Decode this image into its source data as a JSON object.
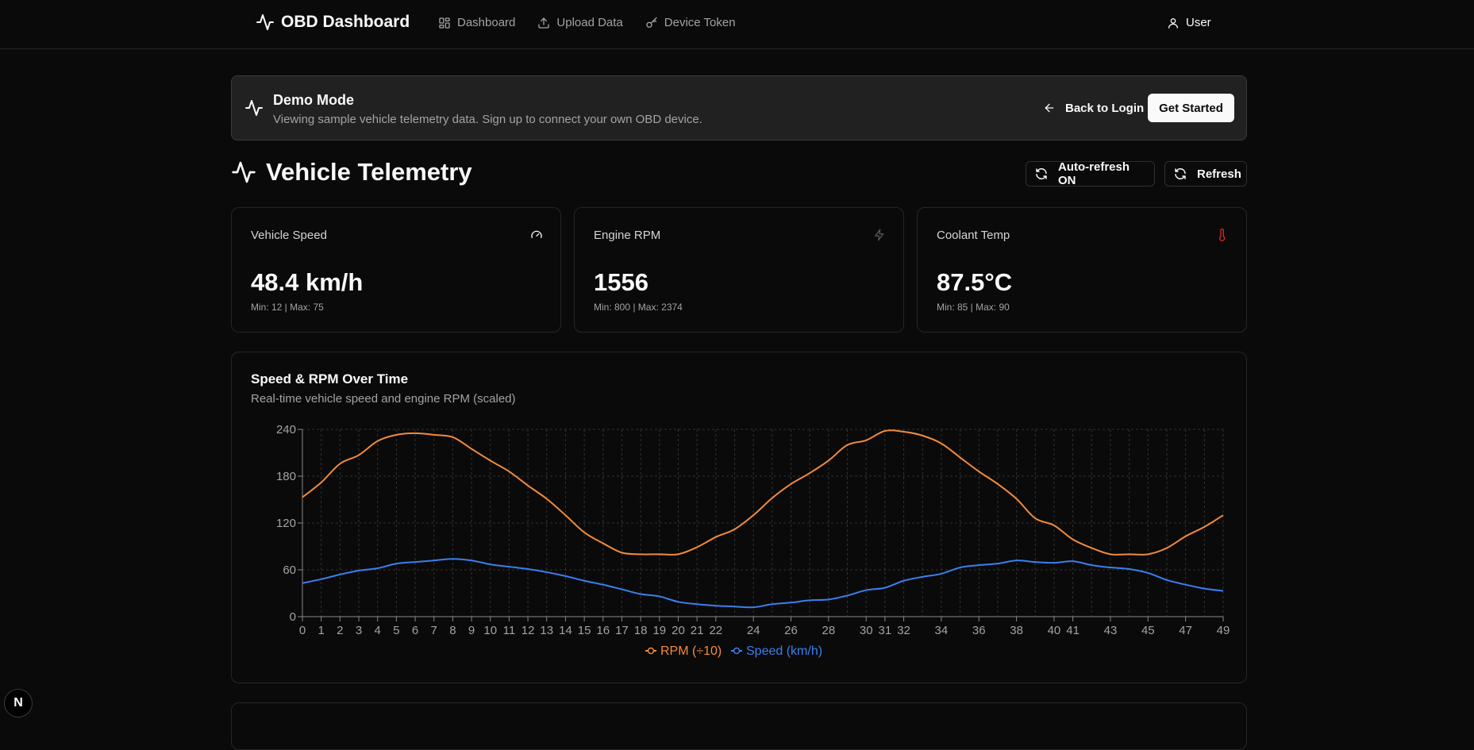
{
  "nav": {
    "brand": "OBD Dashboard",
    "items": [
      {
        "label": "Dashboard",
        "icon": "grid-icon"
      },
      {
        "label": "Upload Data",
        "icon": "upload-icon"
      },
      {
        "label": "Device Token",
        "icon": "key-icon"
      }
    ],
    "user_label": "User"
  },
  "demo": {
    "title": "Demo Mode",
    "description": "Viewing sample vehicle telemetry data. Sign up to connect your own OBD device.",
    "back_label": "Back to Login",
    "start_label": "Get Started"
  },
  "page": {
    "title": "Vehicle Telemetry",
    "auto_refresh_label": "Auto-refresh ON",
    "refresh_label": "Refresh"
  },
  "cards": [
    {
      "label": "Vehicle Speed",
      "value": "48.4 km/h",
      "sub": "Min: 12 | Max: 75",
      "icon": "gauge-icon"
    },
    {
      "label": "Engine RPM",
      "value": "1556",
      "sub": "Min: 800 | Max: 2374",
      "icon": "zap-icon"
    },
    {
      "label": "Coolant Temp",
      "value": "87.5°C",
      "sub": "Min: 85 | Max: 90",
      "icon": "thermometer-icon"
    }
  ],
  "colors": {
    "rpm": "#f28b3c",
    "speed": "#3b7ff0",
    "coolant_icon": "#dc2626"
  },
  "chart": {
    "title": "Speed & RPM Over Time",
    "subtitle": "Real-time vehicle speed and engine RPM (scaled)"
  },
  "chart_data": {
    "type": "line",
    "title": "Speed & RPM Over Time",
    "subtitle": "Real-time vehicle speed and engine RPM (scaled)",
    "x": [
      0,
      1,
      2,
      3,
      4,
      5,
      6,
      7,
      8,
      9,
      10,
      11,
      12,
      13,
      14,
      15,
      16,
      17,
      18,
      19,
      20,
      21,
      22,
      23,
      24,
      25,
      26,
      27,
      28,
      29,
      30,
      31,
      32,
      33,
      34,
      35,
      36,
      37,
      38,
      39,
      40,
      41,
      42,
      43,
      44,
      45,
      46,
      47,
      48,
      49
    ],
    "x_tick_labels": [
      "0",
      "1",
      "2",
      "3",
      "4",
      "5",
      "6",
      "7",
      "8",
      "9",
      "10",
      "11",
      "12",
      "13",
      "14",
      "15",
      "16",
      "17",
      "18",
      "19",
      "20",
      "21",
      "22",
      "24",
      "26",
      "28",
      "30",
      "31",
      "32",
      "34",
      "36",
      "38",
      "40",
      "41",
      "43",
      "45",
      "47",
      "49"
    ],
    "ylim": [
      0,
      240
    ],
    "yticks": [
      0,
      60,
      120,
      180,
      240
    ],
    "grid": true,
    "legend_position": "bottom",
    "series": [
      {
        "name": "RPM (÷10)",
        "color": "#f28b3c",
        "values": [
          153,
          172,
          196,
          207,
          225,
          233,
          235,
          233,
          230,
          215,
          200,
          186,
          168,
          151,
          130,
          108,
          94,
          82,
          80,
          80,
          80,
          89,
          102,
          112,
          130,
          152,
          170,
          184,
          200,
          220,
          226,
          238,
          237,
          232,
          222,
          204,
          186,
          170,
          151,
          126,
          117,
          99,
          88,
          80,
          80,
          80,
          88,
          103,
          115,
          130
        ]
      },
      {
        "name": "Speed (km/h)",
        "color": "#3b7ff0",
        "values": [
          43,
          48,
          54,
          59,
          62,
          68,
          70,
          72,
          74,
          72,
          67,
          64,
          61,
          57,
          52,
          46,
          41,
          35,
          29,
          26,
          19,
          16,
          14,
          13,
          12,
          16,
          18,
          21,
          22,
          27,
          34,
          37,
          46,
          51,
          55,
          63,
          66,
          68,
          72,
          70,
          69,
          71,
          66,
          63,
          61,
          56,
          47,
          41,
          36,
          33
        ]
      }
    ]
  }
}
